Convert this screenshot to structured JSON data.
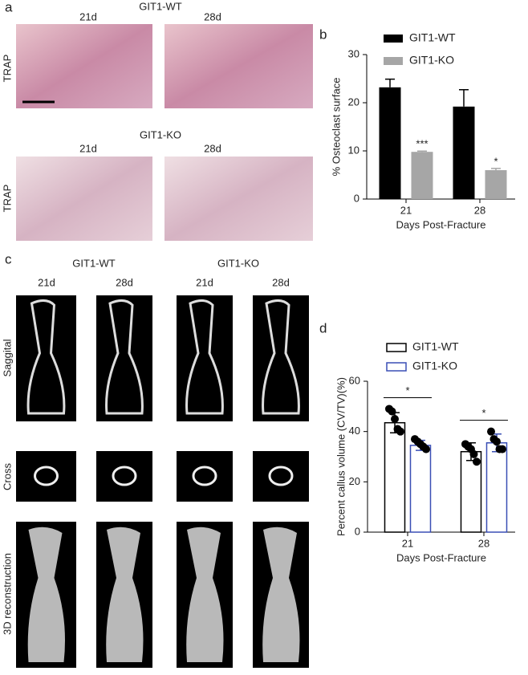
{
  "panel_labels": [
    "a",
    "b",
    "c",
    "d"
  ],
  "panel_a": {
    "groups": [
      "GIT1-WT",
      "GIT1-KO"
    ],
    "columns": [
      "21d",
      "28d"
    ],
    "row_label": "TRAP"
  },
  "panel_c": {
    "groups": [
      "GIT1-WT",
      "GIT1-KO"
    ],
    "columns": [
      "21d",
      "28d",
      "21d",
      "28d"
    ],
    "rows": [
      "Saggital",
      "Cross",
      "3D reconstruction"
    ]
  },
  "chart_data": [
    {
      "type": "bar",
      "y_label": "% Osteoclast surface",
      "x_label": "Days Post-Fracture",
      "categories": [
        "21",
        "28"
      ],
      "ylim": [
        0,
        30
      ],
      "yticks": [
        0,
        10,
        20,
        30
      ],
      "bar_style": "filled",
      "error_direction": "up",
      "series": [
        {
          "name": "GIT1-WT",
          "color": "#000000",
          "values": [
            23.2,
            19.2
          ],
          "errors": [
            1.7,
            3.5
          ]
        },
        {
          "name": "GIT1-KO",
          "color": "#a6a6a6",
          "values": [
            9.8,
            6.0
          ],
          "errors": [
            0.15,
            0.35
          ],
          "significance": [
            "***",
            "*"
          ]
        }
      ]
    },
    {
      "type": "bar",
      "y_label": "Percent callus volume (CV/TV)(%)",
      "x_label": "Days Post-Fracture",
      "categories": [
        "21",
        "28"
      ],
      "ylim": [
        0,
        60
      ],
      "yticks": [
        0,
        20,
        40,
        60
      ],
      "bar_style": "outline",
      "error_direction": "both",
      "point_color": "#000000",
      "significance": [
        "*",
        "*"
      ],
      "series": [
        {
          "name": "GIT1-WT",
          "color": "#000000",
          "values": [
            43.5,
            32.0
          ],
          "errors": [
            4.0,
            3.5
          ],
          "points": [
            [
              49,
              48,
              45,
              41,
              40
            ],
            [
              35,
              34,
              33,
              31,
              28
            ]
          ]
        },
        {
          "name": "GIT1-KO",
          "color": "#3a4fb5",
          "values": [
            34.5,
            35.5
          ],
          "errors": [
            2.0,
            3.5
          ],
          "points": [
            [
              37,
              36,
              35,
              34,
              33
            ],
            [
              40,
              37,
              36,
              33,
              33
            ]
          ]
        }
      ]
    }
  ]
}
